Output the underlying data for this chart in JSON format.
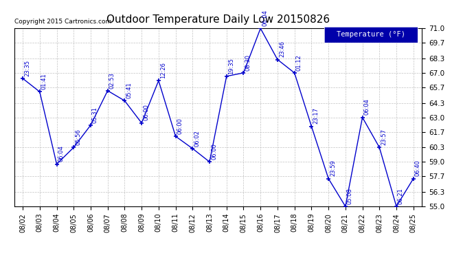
{
  "title": "Outdoor Temperature Daily Low 20150826",
  "copyright": "Copyright 2015 Cartronics.com",
  "legend_label": "Temperature (°F)",
  "dates": [
    "08/02",
    "08/03",
    "08/04",
    "08/05",
    "08/06",
    "08/07",
    "08/08",
    "08/09",
    "08/10",
    "08/11",
    "08/12",
    "08/13",
    "08/14",
    "08/15",
    "08/16",
    "08/17",
    "08/18",
    "08/19",
    "08/20",
    "08/21",
    "08/22",
    "08/23",
    "08/24",
    "08/25"
  ],
  "temps": [
    66.5,
    65.3,
    58.8,
    60.3,
    62.3,
    65.4,
    64.5,
    62.5,
    66.3,
    61.3,
    60.2,
    59.0,
    66.7,
    67.0,
    71.0,
    68.2,
    67.0,
    62.2,
    57.5,
    55.0,
    63.0,
    60.3,
    55.0,
    57.5
  ],
  "time_labels": [
    "23:35",
    "01:41",
    "06:04",
    "05:56",
    "05:31",
    "02:53",
    "05:41",
    "06:00",
    "12:26",
    "06:00",
    "06:02",
    "06:00",
    "19:35",
    "08:30",
    "06:04",
    "23:46",
    "01:12",
    "23:17",
    "23:59",
    "05:08",
    "06:04",
    "23:57",
    "06:21",
    "06:40"
  ],
  "line_color": "#0000cc",
  "bg_color": "#ffffff",
  "plot_bg_color": "#ffffff",
  "grid_color": "#bbbbbb",
  "ylim": [
    55.0,
    71.0
  ],
  "yticks": [
    55.0,
    56.3,
    57.7,
    59.0,
    60.3,
    61.7,
    63.0,
    64.3,
    65.7,
    67.0,
    68.3,
    69.7,
    71.0
  ],
  "title_fontsize": 11,
  "label_fontsize": 7,
  "legend_bg": "#0000aa",
  "legend_text_color": "#ffffff"
}
